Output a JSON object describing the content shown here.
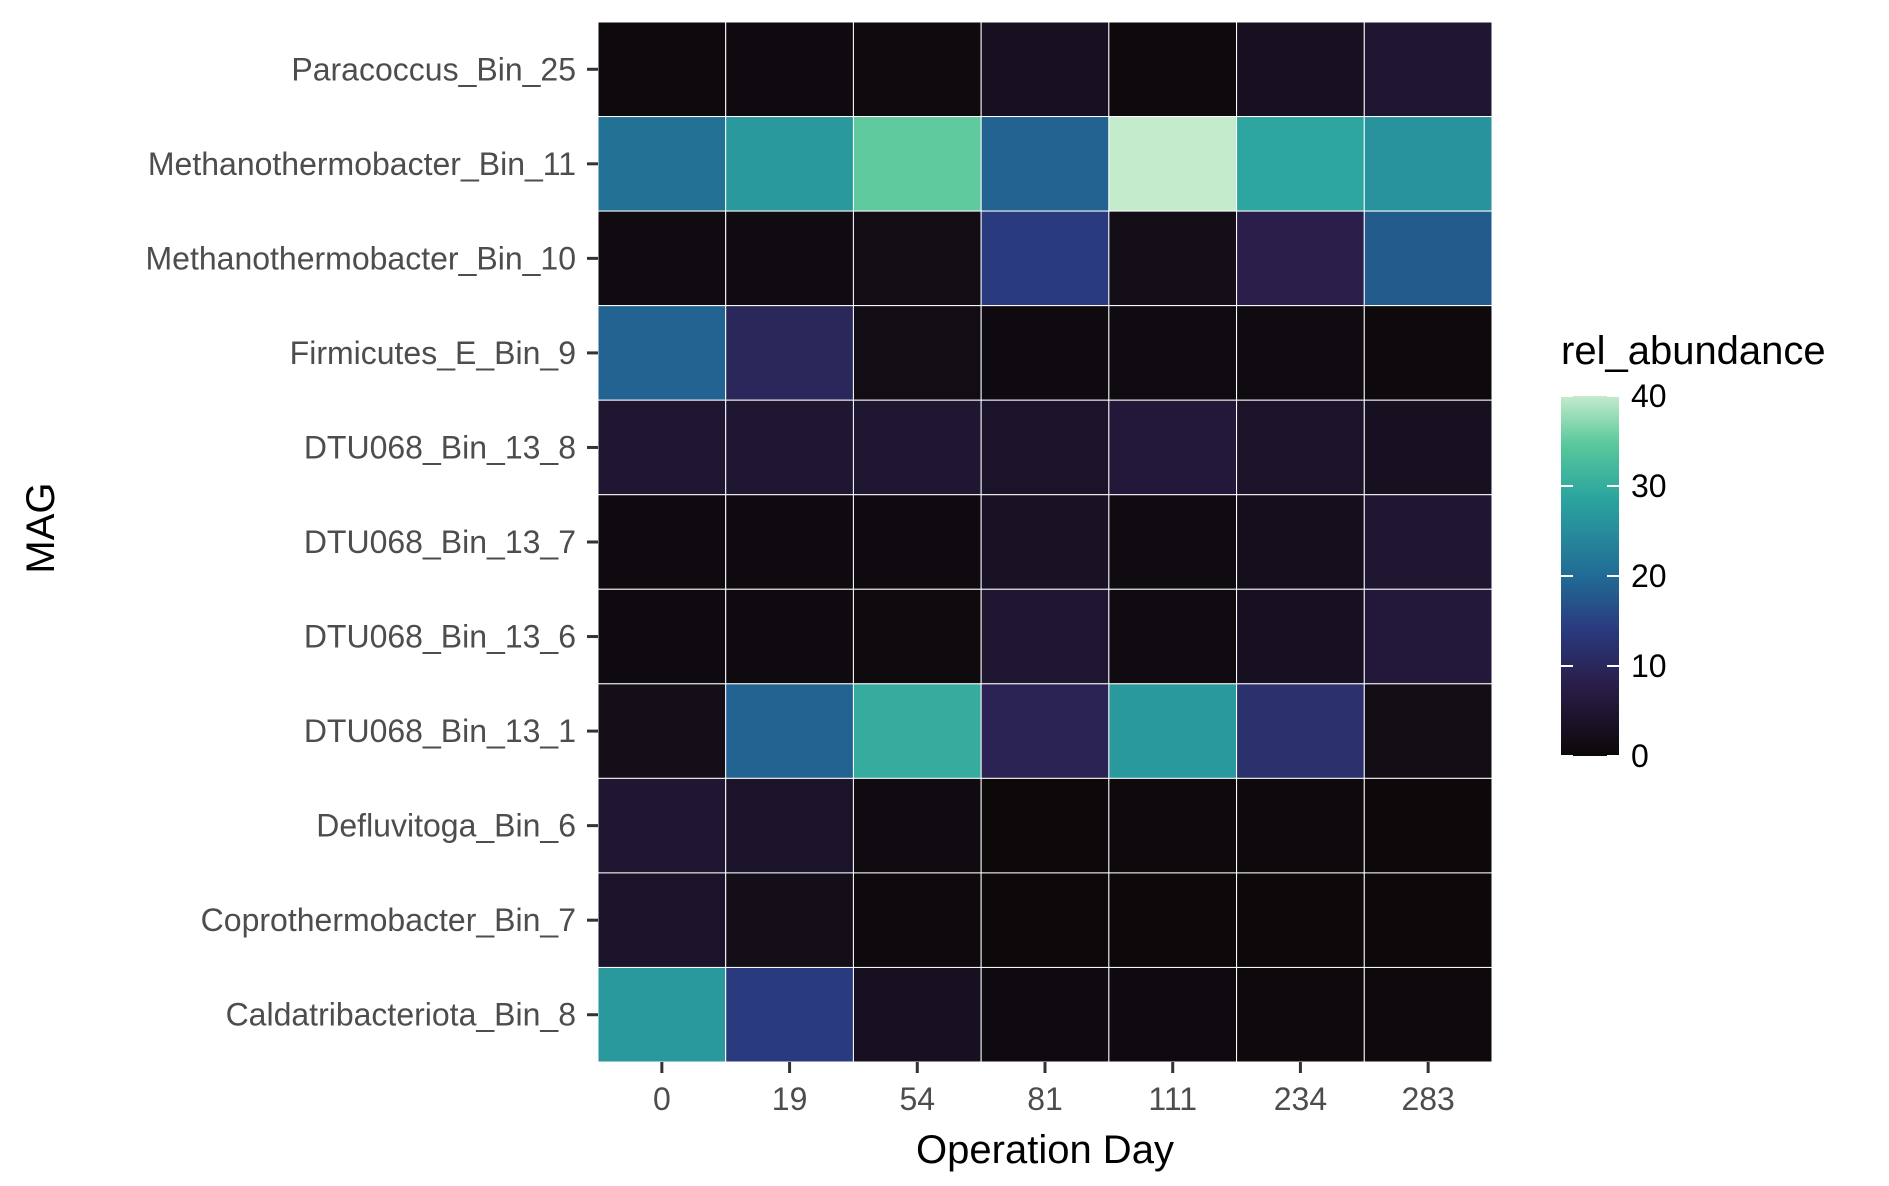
{
  "chart_data": {
    "type": "heatmap",
    "title": "",
    "xlabel": "Operation Day",
    "ylabel": "MAG",
    "x": [
      "0",
      "19",
      "54",
      "81",
      "111",
      "234",
      "283"
    ],
    "y": [
      "Paracoccus_Bin_25",
      "Methanothermobacter_Bin_11",
      "Methanothermobacter_Bin_10",
      "Firmicutes_E_Bin_9",
      "DTU068_Bin_13_8",
      "DTU068_Bin_13_7",
      "DTU068_Bin_13_6",
      "DTU068_Bin_13_1",
      "Defluvitoga_Bin_6",
      "Coprothermobacter_Bin_7",
      "Caldatribacteriota_Bin_8"
    ],
    "values": [
      [
        0.5,
        0.8,
        0.6,
        3.0,
        0.4,
        3.0,
        5.0
      ],
      [
        21,
        27,
        35,
        19,
        40,
        29,
        26
      ],
      [
        1.0,
        1.0,
        1.5,
        14,
        2.0,
        8.0,
        18
      ],
      [
        19,
        10,
        1.5,
        0.8,
        1.0,
        1.0,
        0.5
      ],
      [
        5.0,
        5.0,
        5.0,
        4.0,
        6.0,
        4.0,
        3.0
      ],
      [
        0.8,
        0.8,
        0.8,
        3.5,
        1.0,
        2.5,
        5.0
      ],
      [
        0.8,
        0.8,
        0.6,
        5.0,
        1.0,
        3.0,
        6.0
      ],
      [
        2.0,
        19,
        30,
        9.0,
        27,
        12,
        1.5
      ],
      [
        5.0,
        4.0,
        1.0,
        0.3,
        0.5,
        0.5,
        0.3
      ],
      [
        4.0,
        2.0,
        0.5,
        0.2,
        0.3,
        0.3,
        0.2
      ],
      [
        27,
        14,
        3.0,
        0.8,
        0.8,
        0.5,
        0.5
      ]
    ],
    "colorbar": {
      "title": "rel_abundance",
      "range": [
        0,
        40
      ],
      "ticks": [
        "0",
        "10",
        "20",
        "30",
        "40"
      ],
      "tick_values": [
        0,
        10,
        20,
        30,
        40
      ],
      "colors": [
        "#0c0809",
        "#2a1e4a",
        "#2a3a7e",
        "#216b95",
        "#2ba59f",
        "#5bc99c",
        "#c4ebcc"
      ],
      "stops": [
        0,
        0.2,
        0.35,
        0.5,
        0.72,
        0.87,
        1.0
      ]
    },
    "legend": "right",
    "grid": true
  }
}
